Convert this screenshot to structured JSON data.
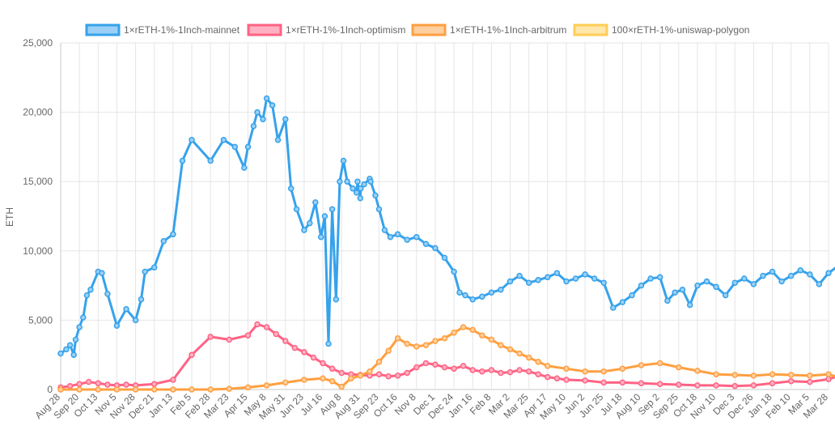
{
  "chart_data": {
    "type": "line",
    "title": "",
    "xlabel": "",
    "ylabel": "ETH",
    "ylim": [
      0,
      25000
    ],
    "y_ticks": [
      0,
      5000,
      10000,
      15000,
      20000,
      25000
    ],
    "y_tick_labels": [
      "0",
      "5,000",
      "10,000",
      "15,000",
      "20,000",
      "25,000"
    ],
    "x_tick_labels": [
      "Aug 28",
      "Sep 20",
      "Oct 13",
      "Nov 5",
      "Nov 28",
      "Dec 21",
      "Jan 13",
      "Feb 5",
      "Feb 28",
      "Mar 23",
      "Apr 15",
      "May 8",
      "May 31",
      "Jun 23",
      "Jul 16",
      "Aug 8",
      "Aug 31",
      "Sep 23",
      "Oct 16",
      "Nov 8",
      "Dec 1",
      "Dec 24",
      "Jan 16",
      "Feb 8",
      "Mar 2",
      "Mar 25",
      "Apr 17",
      "May 10",
      "Jun 2",
      "Jun 25",
      "Jul 18",
      "Aug 10",
      "Sep 2",
      "Sep 25",
      "Oct 18",
      "Nov 10",
      "Dec 3",
      "Dec 26",
      "Jan 18",
      "Feb 10",
      "Mar 5",
      "Mar 28"
    ],
    "grid": true,
    "legend_position": "top",
    "series": [
      {
        "name": "1×rETH-1%-1Inch-mainnet",
        "color": "#36a2eb",
        "fill": "#9ad0f5",
        "x": [
          0,
          0.3,
          0.5,
          0.7,
          0.8,
          1.0,
          1.2,
          1.4,
          1.6,
          2.0,
          2.2,
          2.5,
          3.0,
          3.5,
          4.0,
          4.3,
          4.5,
          5.0,
          5.5,
          6.0,
          6.5,
          7.0,
          8.0,
          8.7,
          9.3,
          9.8,
          10.0,
          10.3,
          10.5,
          10.8,
          11.0,
          11.3,
          11.6,
          12.0,
          12.3,
          12.6,
          13.0,
          13.3,
          13.6,
          13.9,
          14.1,
          14.3,
          14.5,
          14.7,
          14.9,
          15.1,
          15.3,
          15.6,
          15.8,
          15.85,
          16.0,
          16.02,
          16.2,
          16.5,
          16.55,
          16.8,
          17.0,
          17.3,
          17.6,
          18.0,
          18.5,
          19.0,
          19.5,
          20.0,
          20.5,
          21.0,
          21.3,
          21.6,
          22.0,
          22.5,
          23.0,
          23.5,
          24.0,
          24.5,
          25.0,
          25.5,
          26.0,
          26.5,
          27.0,
          27.5,
          28.0,
          28.5,
          29.0,
          29.5,
          30.0,
          30.5,
          31.0,
          31.5,
          32.0,
          32.4,
          32.8,
          33.2,
          33.6,
          34.0,
          34.5,
          35.0,
          35.5,
          36.0,
          36.5,
          37.0,
          37.5,
          38.0,
          38.5,
          39.0,
          39.5,
          40.0,
          40.5,
          41.0,
          41.5
        ],
        "values": [
          2600,
          2900,
          3200,
          2500,
          3600,
          4500,
          5200,
          6800,
          7200,
          8500,
          8400,
          6900,
          4600,
          5800,
          5000,
          6500,
          8500,
          8800,
          10700,
          11200,
          16500,
          18000,
          16500,
          18000,
          17500,
          16000,
          17500,
          19000,
          20000,
          19500,
          21000,
          20500,
          18000,
          19500,
          14500,
          13000,
          11500,
          12000,
          13500,
          11000,
          12500,
          3300,
          13000,
          6500,
          15000,
          16500,
          15000,
          14500,
          14200,
          15000,
          13800,
          14500,
          14800,
          15200,
          15000,
          14000,
          13000,
          11500,
          11000,
          11200,
          10800,
          11000,
          10500,
          10200,
          9500,
          8500,
          7000,
          6800,
          6500,
          6700,
          7000,
          7200,
          7800,
          8200,
          7700,
          7900,
          8100,
          8400,
          7800,
          8000,
          8300,
          8000,
          7700,
          5900,
          6300,
          6800,
          7500,
          8000,
          8100,
          6400,
          7000,
          7200,
          6100,
          7500,
          7800,
          7400,
          6800,
          7700,
          8000,
          7600,
          8200,
          8500,
          7800,
          8200,
          8600,
          8300,
          7600,
          8400,
          8900
        ]
      },
      {
        "name": "1×rETH-1%-1Inch-optimism",
        "color": "#ff6384",
        "fill": "#ffb1c1",
        "x": [
          0,
          0.5,
          1.0,
          1.5,
          2.0,
          2.5,
          3.0,
          3.5,
          4.0,
          5.0,
          6.0,
          7.0,
          8.0,
          9.0,
          10.0,
          10.5,
          11.0,
          11.5,
          12.0,
          12.5,
          13.0,
          13.5,
          14.0,
          14.5,
          15.0,
          15.5,
          16.0,
          16.5,
          17.0,
          17.5,
          18.0,
          18.5,
          19.0,
          19.5,
          20.0,
          20.5,
          21.0,
          21.5,
          22.0,
          22.5,
          23.0,
          23.5,
          24.0,
          24.5,
          25.0,
          25.5,
          26.0,
          26.5,
          27.0,
          28.0,
          29.0,
          30.0,
          31.0,
          32.0,
          33.0,
          34.0,
          35.0,
          36.0,
          37.0,
          38.0,
          39.0,
          40.0,
          41.0,
          41.5
        ],
        "values": [
          150,
          250,
          400,
          550,
          450,
          350,
          300,
          350,
          300,
          400,
          700,
          2500,
          3800,
          3600,
          3900,
          4700,
          4500,
          4000,
          3500,
          3000,
          2700,
          2300,
          1900,
          1500,
          1200,
          1100,
          1050,
          1000,
          1100,
          950,
          1000,
          1200,
          1600,
          1900,
          1800,
          1600,
          1500,
          1700,
          1400,
          1300,
          1400,
          1200,
          1250,
          1400,
          1300,
          1100,
          900,
          800,
          700,
          650,
          500,
          500,
          450,
          400,
          350,
          300,
          300,
          250,
          300,
          450,
          600,
          550,
          750,
          950
        ]
      },
      {
        "name": "1×rETH-1%-1Inch-arbitrum",
        "color": "#ff9f40",
        "fill": "#ffcf9f",
        "x": [
          0,
          1,
          2,
          3,
          4,
          5,
          6,
          7,
          8,
          9,
          10,
          11,
          12,
          13,
          14,
          14.5,
          15,
          15.5,
          16,
          16.5,
          17,
          17.5,
          18,
          18.5,
          19,
          19.5,
          20,
          20.5,
          21,
          21.5,
          22,
          22.5,
          23,
          23.5,
          24,
          24.5,
          25,
          25.5,
          26,
          27,
          28,
          29,
          30,
          31,
          32,
          33,
          34,
          35,
          36,
          37,
          38,
          39,
          40,
          41,
          41.5
        ],
        "values": [
          0,
          0,
          0,
          0,
          0,
          0,
          0,
          0,
          0,
          50,
          150,
          300,
          500,
          700,
          800,
          600,
          200,
          800,
          1000,
          1300,
          2000,
          2800,
          3700,
          3300,
          3100,
          3200,
          3500,
          3700,
          4100,
          4500,
          4300,
          3900,
          3600,
          3200,
          2900,
          2600,
          2300,
          2000,
          1700,
          1500,
          1300,
          1300,
          1500,
          1750,
          1900,
          1600,
          1350,
          1100,
          1050,
          1000,
          1100,
          1050,
          1000,
          1100,
          900
        ]
      },
      {
        "name": "100×rETH-1%-uniswap-polygon",
        "color": "#ffcd56",
        "fill": "#ffe6aa",
        "x": [],
        "values": []
      }
    ]
  }
}
